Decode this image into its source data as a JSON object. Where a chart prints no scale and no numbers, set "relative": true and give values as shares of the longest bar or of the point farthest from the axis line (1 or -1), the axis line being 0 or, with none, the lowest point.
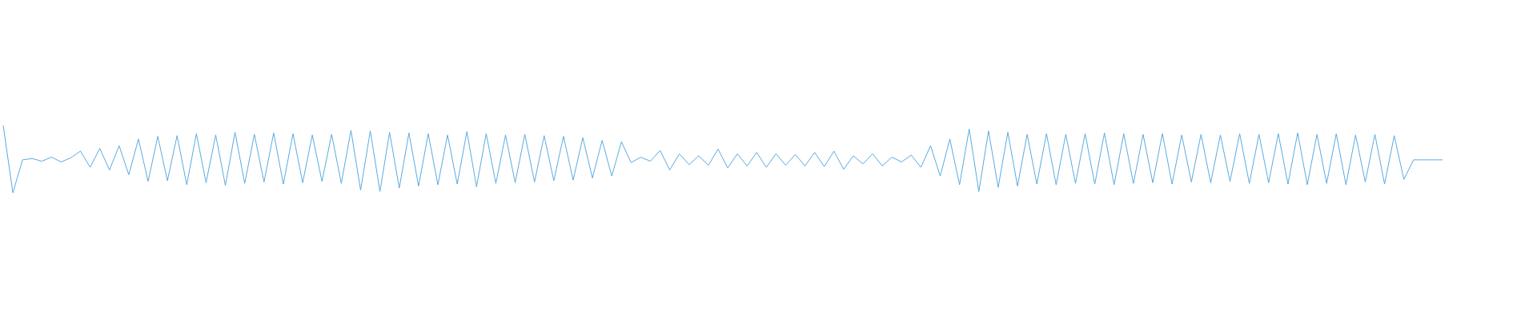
{
  "chart_data": {
    "type": "line",
    "relative": true,
    "categories": [
      null,
      null,
      null,
      null,
      null,
      null,
      null,
      null,
      null,
      null,
      null,
      null,
      null,
      null,
      null,
      null,
      null,
      null,
      null,
      null,
      null,
      null,
      null,
      null,
      null,
      null,
      null,
      null,
      null,
      null,
      null,
      null,
      null,
      null,
      null,
      null,
      null,
      null,
      null,
      null,
      null,
      null,
      null,
      null,
      null,
      null,
      null,
      null,
      null,
      null,
      null,
      null,
      null,
      null,
      null,
      null,
      null,
      null,
      null,
      null,
      null,
      null,
      null,
      null,
      null,
      null,
      null,
      null,
      null,
      null,
      null,
      null,
      null,
      null,
      null,
      null,
      null,
      null,
      null,
      null,
      null,
      null,
      null,
      null,
      null,
      null,
      null,
      null,
      null,
      null,
      null,
      null,
      null,
      null,
      null,
      null,
      null,
      null,
      null,
      null,
      null,
      null,
      null,
      null,
      null,
      null,
      null,
      null,
      null,
      null,
      null,
      null,
      null,
      null,
      null,
      null,
      null,
      null,
      null,
      null,
      null,
      null,
      null,
      null,
      null,
      null,
      null,
      null,
      null,
      null,
      null,
      null,
      null,
      null,
      null,
      null,
      null,
      null,
      null,
      null,
      null,
      null,
      null,
      null,
      null,
      null,
      null,
      null,
      null,
      null
    ],
    "series": [
      {
        "color": "#5aaae0",
        "values": [
          1.0,
          0.0,
          0.49,
          0.51,
          0.47,
          0.53,
          0.46,
          0.52,
          0.62,
          0.38,
          0.66,
          0.34,
          0.7,
          0.27,
          0.8,
          0.17,
          0.84,
          0.18,
          0.85,
          0.12,
          0.88,
          0.15,
          0.86,
          0.11,
          0.9,
          0.14,
          0.87,
          0.16,
          0.89,
          0.13,
          0.88,
          0.15,
          0.86,
          0.17,
          0.87,
          0.14,
          0.93,
          0.04,
          0.92,
          0.02,
          0.9,
          0.07,
          0.89,
          0.1,
          0.88,
          0.12,
          0.86,
          0.13,
          0.91,
          0.09,
          0.88,
          0.14,
          0.86,
          0.15,
          0.87,
          0.16,
          0.85,
          0.18,
          0.84,
          0.19,
          0.82,
          0.22,
          0.78,
          0.25,
          0.76,
          0.45,
          0.53,
          0.47,
          0.63,
          0.34,
          0.58,
          0.42,
          0.55,
          0.41,
          0.65,
          0.37,
          0.58,
          0.4,
          0.6,
          0.38,
          0.58,
          0.41,
          0.57,
          0.4,
          0.6,
          0.39,
          0.62,
          0.35,
          0.55,
          0.43,
          0.58,
          0.4,
          0.53,
          0.46,
          0.56,
          0.38,
          0.7,
          0.25,
          0.8,
          0.12,
          0.95,
          0.02,
          0.92,
          0.08,
          0.9,
          0.1,
          0.87,
          0.13,
          0.88,
          0.12,
          0.87,
          0.14,
          0.88,
          0.13,
          0.89,
          0.12,
          0.88,
          0.14,
          0.87,
          0.15,
          0.88,
          0.13,
          0.86,
          0.16,
          0.87,
          0.15,
          0.86,
          0.17,
          0.88,
          0.14,
          0.87,
          0.15,
          0.88,
          0.13,
          0.89,
          0.12,
          0.87,
          0.14,
          0.88,
          0.12,
          0.86,
          0.16,
          0.87,
          0.13,
          0.85,
          0.2,
          0.49,
          0.49,
          0.49,
          0.49
        ]
      }
    ]
  }
}
